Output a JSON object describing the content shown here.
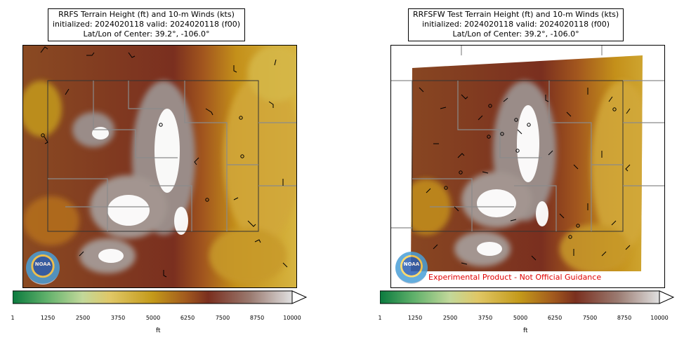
{
  "panels": [
    {
      "title_lines": [
        "RRFS Terrain Height (ft) and 10-m Winds (kts)",
        "initialized: 2024020118 valid: 2024020118 (f00)",
        "Lat/Lon of Center: 39.2°, -106.0°"
      ],
      "logo_text": "NOAA",
      "colorbar": {
        "units": "ft",
        "ticks": [
          "1",
          "1250",
          "2500",
          "3750",
          "5000",
          "6250",
          "7500",
          "8750",
          "10000"
        ]
      }
    },
    {
      "title_lines": [
        "RRFSFW Test Terrain Height (ft) and 10-m Winds (kts)",
        "initialized: 2024020118 valid: 2024020118 (f00)",
        "Lat/Lon of Center: 39.2°, -106.0°"
      ],
      "logo_text": "NOAA",
      "disclaimer": "Experimental Product - Not Official Guidance",
      "colorbar": {
        "units": "ft",
        "ticks": [
          "1",
          "1250",
          "2500",
          "3750",
          "5000",
          "6250",
          "7500",
          "8750",
          "10000"
        ]
      }
    }
  ],
  "colors": {
    "low_green": "#0b7a3e",
    "mid_yellow": "#e0c766",
    "gold": "#c49a1a",
    "brown": "#7a2f1f",
    "high_gray": "#9a8c88",
    "peak_white": "#ffffff",
    "disclaimer_red": "#e00000"
  }
}
